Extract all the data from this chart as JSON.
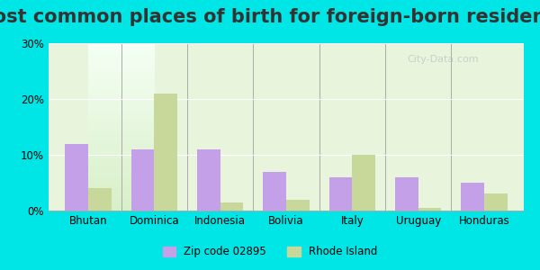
{
  "title": "Most common places of birth for foreign-born residents",
  "categories": [
    "Bhutan",
    "Dominica",
    "Indonesia",
    "Bolivia",
    "Italy",
    "Uruguay",
    "Honduras"
  ],
  "zip_values": [
    12.0,
    11.0,
    11.0,
    7.0,
    6.0,
    6.0,
    5.0
  ],
  "ri_values": [
    4.0,
    21.0,
    1.5,
    2.0,
    10.0,
    0.5,
    3.0
  ],
  "zip_color": "#c4a0e8",
  "ri_color": "#c8d89a",
  "zip_label": "Zip code 02895",
  "ri_label": "Rhode Island",
  "ylim": [
    0,
    30
  ],
  "yticks": [
    0,
    10,
    20,
    30
  ],
  "ytick_labels": [
    "0%",
    "10%",
    "20%",
    "30%"
  ],
  "background_top": "#e8f5e0",
  "background_bottom": "#f5fff5",
  "outer_bg": "#00e5e5",
  "title_fontsize": 15,
  "bar_width": 0.35
}
